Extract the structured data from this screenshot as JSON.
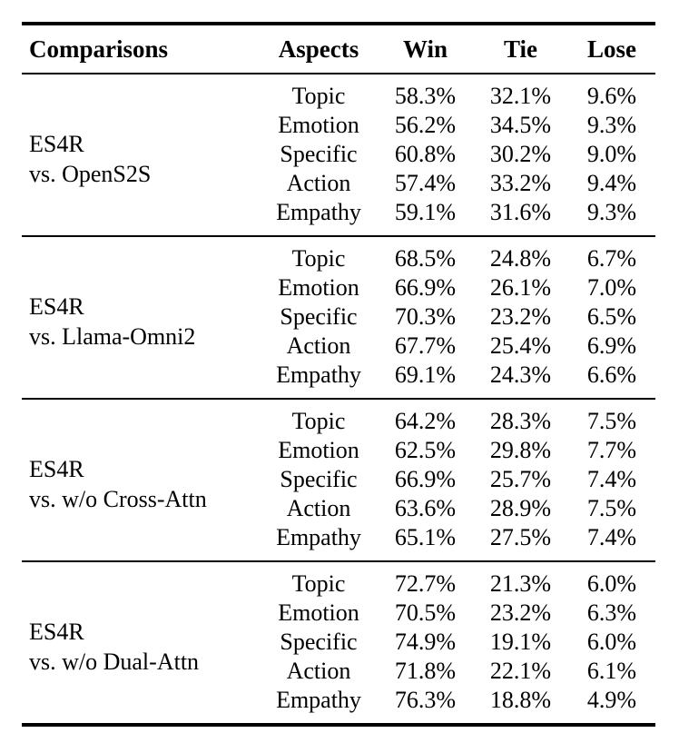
{
  "colors": {
    "text": "#000000",
    "background": "#ffffff",
    "rule": "#000000"
  },
  "table": {
    "headers": {
      "comparisons": "Comparisons",
      "aspects": "Aspects",
      "win": "Win",
      "tie": "Tie",
      "lose": "Lose"
    },
    "sections": [
      {
        "comparison": {
          "line1": "ES4R",
          "line2": "vs. OpenS2S"
        },
        "rows": [
          {
            "aspect": "Topic",
            "win": "58.3%",
            "tie": "32.1%",
            "lose": "9.6%"
          },
          {
            "aspect": "Emotion",
            "win": "56.2%",
            "tie": "34.5%",
            "lose": "9.3%"
          },
          {
            "aspect": "Specific",
            "win": "60.8%",
            "tie": "30.2%",
            "lose": "9.0%"
          },
          {
            "aspect": "Action",
            "win": "57.4%",
            "tie": "33.2%",
            "lose": "9.4%"
          },
          {
            "aspect": "Empathy",
            "win": "59.1%",
            "tie": "31.6%",
            "lose": "9.3%"
          }
        ]
      },
      {
        "comparison": {
          "line1": "ES4R",
          "line2": "vs. Llama-Omni2"
        },
        "rows": [
          {
            "aspect": "Topic",
            "win": "68.5%",
            "tie": "24.8%",
            "lose": "6.7%"
          },
          {
            "aspect": "Emotion",
            "win": "66.9%",
            "tie": "26.1%",
            "lose": "7.0%"
          },
          {
            "aspect": "Specific",
            "win": "70.3%",
            "tie": "23.2%",
            "lose": "6.5%"
          },
          {
            "aspect": "Action",
            "win": "67.7%",
            "tie": "25.4%",
            "lose": "6.9%"
          },
          {
            "aspect": "Empathy",
            "win": "69.1%",
            "tie": "24.3%",
            "lose": "6.6%"
          }
        ]
      },
      {
        "comparison": {
          "line1": "ES4R",
          "line2": "vs. w/o Cross-Attn"
        },
        "rows": [
          {
            "aspect": "Topic",
            "win": "64.2%",
            "tie": "28.3%",
            "lose": "7.5%"
          },
          {
            "aspect": "Emotion",
            "win": "62.5%",
            "tie": "29.8%",
            "lose": "7.7%"
          },
          {
            "aspect": "Specific",
            "win": "66.9%",
            "tie": "25.7%",
            "lose": "7.4%"
          },
          {
            "aspect": "Action",
            "win": "63.6%",
            "tie": "28.9%",
            "lose": "7.5%"
          },
          {
            "aspect": "Empathy",
            "win": "65.1%",
            "tie": "27.5%",
            "lose": "7.4%"
          }
        ]
      },
      {
        "comparison": {
          "line1": "ES4R",
          "line2": "vs. w/o Dual-Attn"
        },
        "rows": [
          {
            "aspect": "Topic",
            "win": "72.7%",
            "tie": "21.3%",
            "lose": "6.0%"
          },
          {
            "aspect": "Emotion",
            "win": "70.5%",
            "tie": "23.2%",
            "lose": "6.3%"
          },
          {
            "aspect": "Specific",
            "win": "74.9%",
            "tie": "19.1%",
            "lose": "6.0%"
          },
          {
            "aspect": "Action",
            "win": "71.8%",
            "tie": "22.1%",
            "lose": "6.1%"
          },
          {
            "aspect": "Empathy",
            "win": "76.3%",
            "tie": "18.8%",
            "lose": "4.9%"
          }
        ]
      }
    ]
  }
}
